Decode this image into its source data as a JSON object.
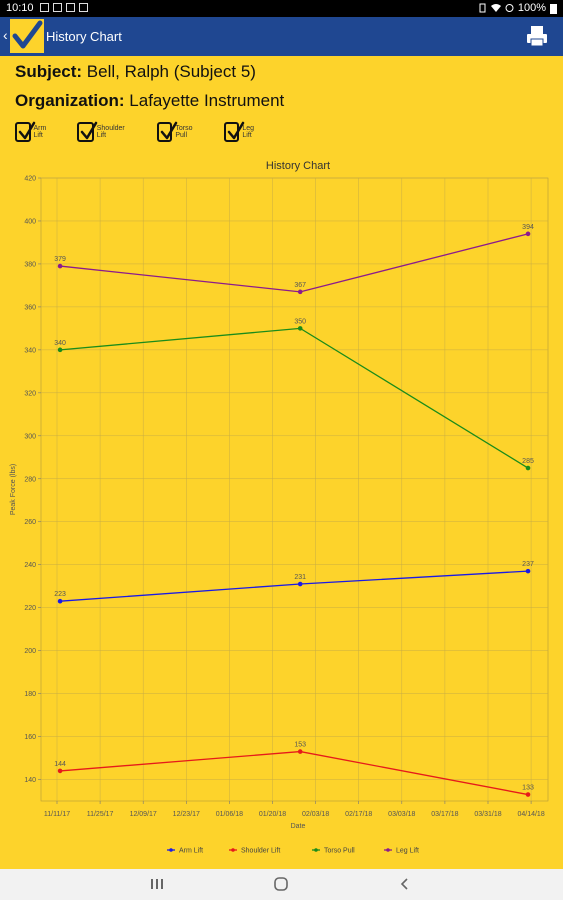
{
  "status_bar": {
    "time": "10:10",
    "battery": "100%"
  },
  "app_bar": {
    "title": "History Chart",
    "logo_icon": "checkmark-logo-icon",
    "print_icon": "printer-icon"
  },
  "info": {
    "subject_label": "Subject:",
    "subject_value": "Bell, Ralph (Subject 5)",
    "organization_label": "Organization:",
    "organization_value": "Lafayette Instrument"
  },
  "filters": [
    {
      "label": "Arm Lift",
      "checked": true
    },
    {
      "label": "Shoulder Lift",
      "checked": true
    },
    {
      "label": "Torso Pull",
      "checked": true
    },
    {
      "label": "Leg Lift",
      "checked": true
    }
  ],
  "chart_data": {
    "type": "line",
    "title": "History Chart",
    "xlabel": "Date",
    "ylabel": "Peak Force (lbs)",
    "x_ticks": [
      "11/11/17",
      "11/25/17",
      "12/09/17",
      "12/23/17",
      "01/06/18",
      "01/20/18",
      "02/03/18",
      "02/17/18",
      "03/03/18",
      "03/17/18",
      "03/31/18",
      "04/14/18"
    ],
    "x": [
      "2017-11-12",
      "2018-01-29",
      "2018-04-13"
    ],
    "ylim": [
      130,
      420
    ],
    "y_ticks": [
      140,
      160,
      180,
      200,
      220,
      240,
      260,
      280,
      300,
      320,
      340,
      360,
      380,
      400,
      420
    ],
    "grid": true,
    "legend_position": "bottom",
    "series": [
      {
        "name": "Arm Lift",
        "color": "#1a1ae6",
        "values": [
          223,
          231,
          237
        ],
        "labels": [
          "223",
          "231",
          "237"
        ]
      },
      {
        "name": "Shoulder Lift",
        "color": "#e61a1a",
        "values": [
          144,
          153,
          133
        ],
        "labels": [
          "144",
          "153",
          "133"
        ]
      },
      {
        "name": "Torso Pull",
        "color": "#1a8c1a",
        "values": [
          340,
          350,
          285
        ],
        "labels": [
          "340",
          "350",
          "285"
        ]
      },
      {
        "name": "Leg Lift",
        "color": "#8c1a8c",
        "values": [
          379,
          367,
          394
        ],
        "labels": [
          "379",
          "367",
          "394"
        ]
      }
    ]
  },
  "nav_bar": {
    "recent_icon": "recent-apps-icon",
    "home_icon": "home-icon",
    "back_icon": "back-icon"
  }
}
